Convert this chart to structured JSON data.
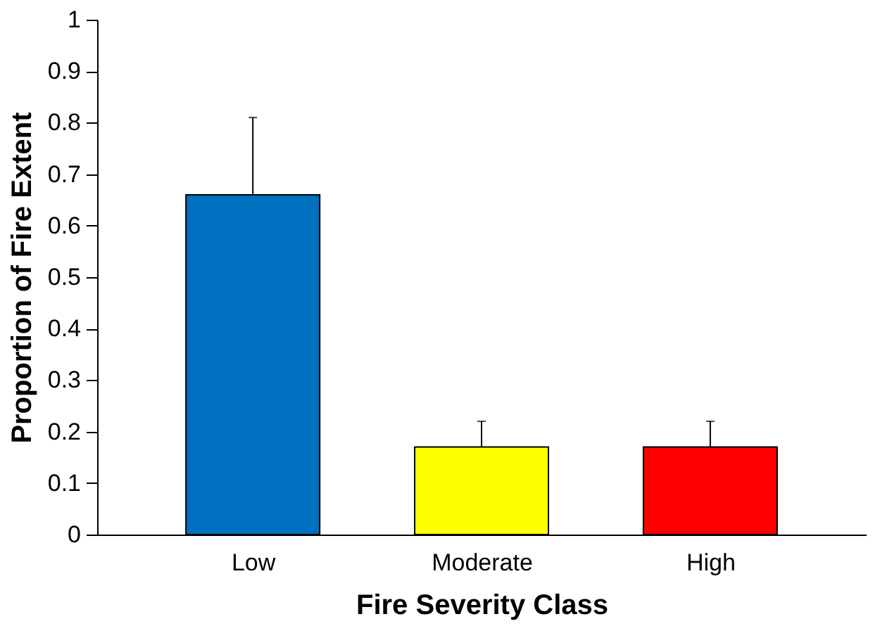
{
  "chart_data": {
    "type": "bar",
    "xlabel": "Fire Severity Class",
    "ylabel": "Proportion of Fire Extent",
    "categories": [
      "Low",
      "Moderate",
      "High"
    ],
    "values": [
      0.66,
      0.17,
      0.17
    ],
    "colors": [
      "#0070c0",
      "#ffff00",
      "#ff0000"
    ],
    "errors": [
      [
        0.66,
        0.81
      ],
      [
        0.17,
        0.22
      ],
      [
        0.17,
        0.22
      ]
    ],
    "ylim": [
      0,
      1
    ],
    "yticks": [
      0,
      0.1,
      0.2,
      0.3,
      0.4,
      0.5,
      0.6,
      0.7,
      0.8,
      0.9,
      1
    ],
    "grid": false
  }
}
